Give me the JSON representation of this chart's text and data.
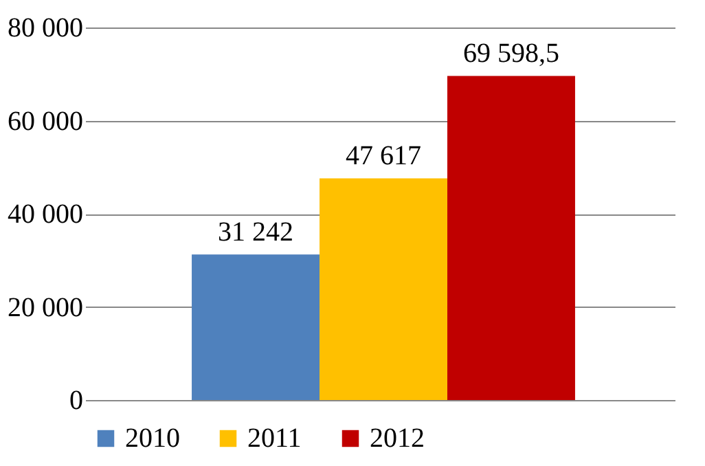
{
  "chart_data": {
    "type": "bar",
    "categories": [
      null
    ],
    "series": [
      {
        "name": "2010",
        "color": "#4f81bd",
        "values": [
          31242
        ],
        "value_labels": [
          "31 242"
        ]
      },
      {
        "name": "2011",
        "color": "#ffc000",
        "values": [
          47617
        ],
        "value_labels": [
          "47 617"
        ]
      },
      {
        "name": "2012",
        "color": "#c00000",
        "values": [
          69598.5
        ],
        "value_labels": [
          "69 598,5"
        ]
      }
    ],
    "ylim": [
      0,
      80000
    ],
    "yticks": [
      0,
      {
        "value": 20000,
        "label": "20 000"
      },
      {
        "value": 40000,
        "label": "40 000"
      },
      {
        "value": 60000,
        "label": "60 000"
      },
      {
        "value": 80000,
        "label": "80 000"
      }
    ],
    "grid": "y",
    "legend": "bottom"
  }
}
